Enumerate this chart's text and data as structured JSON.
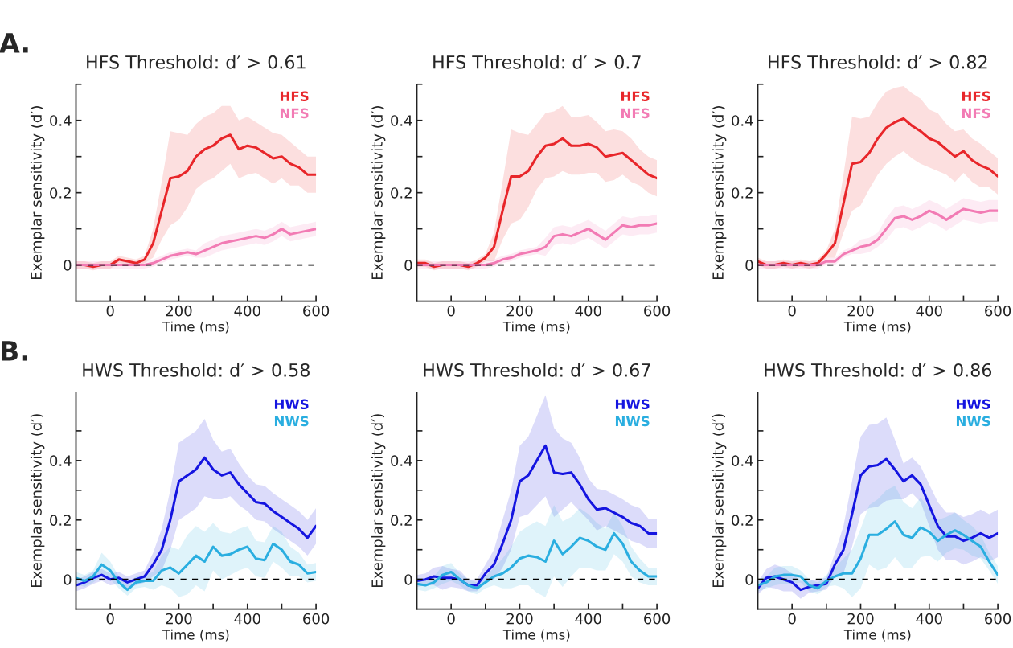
{
  "chart_data": [
    {
      "type": "line",
      "title": "HFS Threshold: d′ > 0.61",
      "xlabel": "Time (ms)",
      "ylabel": "Exemplar sensitivity (d′)",
      "annotations": [
        "A."
      ],
      "legend": "top right",
      "xlim": [
        -100,
        600
      ],
      "ylim": [
        -0.1,
        0.5
      ],
      "xticks": [
        0,
        {
          "value": 100,
          "label": null
        },
        200,
        {
          "value": 300,
          "label": null
        },
        400,
        {
          "value": 500,
          "label": null
        },
        600
      ],
      "yticks": [
        0,
        {
          "value": 0.1,
          "label": null
        },
        0.2,
        {
          "value": 0.3,
          "label": null
        },
        0.4,
        {
          "value": 0.5,
          "label": null
        }
      ],
      "ref_lines": [
        {
          "axis": "y",
          "value": 0,
          "color": "#000000",
          "line_style": "dashed"
        }
      ],
      "x": [
        -100,
        -75,
        -50,
        -25,
        0,
        25,
        50,
        75,
        100,
        125,
        150,
        175,
        200,
        225,
        250,
        275,
        300,
        325,
        350,
        375,
        400,
        425,
        450,
        475,
        500,
        525,
        550,
        575,
        600
      ],
      "series": [
        {
          "name": "HFS",
          "color": "#e8262a",
          "values": [
            0,
            0,
            -0.005,
            0,
            0,
            0.015,
            0.01,
            0.005,
            0.015,
            0.06,
            0.15,
            0.24,
            0.245,
            0.26,
            0.3,
            0.32,
            0.33,
            0.35,
            0.36,
            0.32,
            0.33,
            0.325,
            0.31,
            0.295,
            0.3,
            0.28,
            0.27,
            0.25,
            0.25
          ],
          "lower": [
            -0.01,
            -0.01,
            -0.015,
            -0.01,
            -0.01,
            0.005,
            0,
            -0.005,
            0.005,
            0.02,
            0.07,
            0.11,
            0.125,
            0.16,
            0.21,
            0.23,
            0.24,
            0.26,
            0.28,
            0.24,
            0.25,
            0.255,
            0.24,
            0.225,
            0.24,
            0.22,
            0.22,
            0.2,
            0.2
          ],
          "upper": [
            0.01,
            0.01,
            0.005,
            0.01,
            0.01,
            0.025,
            0.02,
            0.015,
            0.025,
            0.1,
            0.23,
            0.37,
            0.365,
            0.36,
            0.39,
            0.41,
            0.42,
            0.44,
            0.44,
            0.4,
            0.41,
            0.395,
            0.38,
            0.365,
            0.36,
            0.34,
            0.32,
            0.3,
            0.3
          ]
        },
        {
          "name": "NFS",
          "color": "#f27bb4",
          "values": [
            0,
            0,
            0,
            0,
            0,
            0,
            0,
            0,
            0,
            0.005,
            0.015,
            0.025,
            0.03,
            0.035,
            0.03,
            0.04,
            0.05,
            0.06,
            0.065,
            0.07,
            0.075,
            0.08,
            0.075,
            0.085,
            0.1,
            0.085,
            0.09,
            0.095,
            0.1
          ],
          "lower": [
            -0.01,
            -0.01,
            -0.01,
            -0.01,
            -0.01,
            -0.01,
            -0.01,
            -0.01,
            -0.01,
            -0.005,
            0.005,
            0.015,
            0.02,
            0.025,
            0.02,
            0.02,
            0.03,
            0.04,
            0.045,
            0.05,
            0.055,
            0.06,
            0.055,
            0.065,
            0.08,
            0.065,
            0.07,
            0.075,
            0.08
          ],
          "upper": [
            0.01,
            0.01,
            0.01,
            0.01,
            0.01,
            0.01,
            0.01,
            0.01,
            0.01,
            0.015,
            0.025,
            0.035,
            0.04,
            0.045,
            0.04,
            0.06,
            0.07,
            0.08,
            0.085,
            0.09,
            0.095,
            0.1,
            0.095,
            0.105,
            0.12,
            0.105,
            0.11,
            0.115,
            0.12
          ]
        }
      ]
    },
    {
      "type": "line",
      "title": "HFS Threshold: d′ > 0.7",
      "xlabel": "Time (ms)",
      "ylabel": "Exemplar sensitivity (d′)",
      "legend": "top right",
      "xlim": [
        -100,
        600
      ],
      "ylim": [
        -0.1,
        0.5
      ],
      "xticks": [
        0,
        {
          "value": 100,
          "label": null
        },
        200,
        {
          "value": 300,
          "label": null
        },
        400,
        {
          "value": 500,
          "label": null
        },
        600
      ],
      "yticks": [
        0,
        {
          "value": 0.1,
          "label": null
        },
        0.2,
        {
          "value": 0.3,
          "label": null
        },
        0.4,
        {
          "value": 0.5,
          "label": null
        }
      ],
      "ref_lines": [
        {
          "axis": "y",
          "value": 0,
          "color": "#000000",
          "line_style": "dashed"
        }
      ],
      "x": [
        -100,
        -75,
        -50,
        -25,
        0,
        25,
        50,
        75,
        100,
        125,
        150,
        175,
        200,
        225,
        250,
        275,
        300,
        325,
        350,
        375,
        400,
        425,
        450,
        475,
        500,
        525,
        550,
        575,
        600
      ],
      "series": [
        {
          "name": "HFS",
          "color": "#e8262a",
          "values": [
            0.005,
            0.005,
            -0.005,
            0,
            0,
            0,
            -0.005,
            0.005,
            0.02,
            0.05,
            0.15,
            0.245,
            0.245,
            0.26,
            0.3,
            0.33,
            0.335,
            0.35,
            0.33,
            0.33,
            0.335,
            0.325,
            0.3,
            0.305,
            0.31,
            0.29,
            0.27,
            0.25,
            0.24
          ],
          "lower": [
            -0.005,
            -0.005,
            -0.015,
            -0.01,
            -0.01,
            -0.01,
            -0.015,
            -0.005,
            0.01,
            0.01,
            0.07,
            0.115,
            0.125,
            0.16,
            0.21,
            0.24,
            0.245,
            0.26,
            0.25,
            0.25,
            0.255,
            0.255,
            0.23,
            0.235,
            0.25,
            0.23,
            0.22,
            0.2,
            0.19
          ],
          "upper": [
            0.015,
            0.015,
            0.005,
            0.01,
            0.01,
            0.01,
            0.005,
            0.015,
            0.03,
            0.09,
            0.23,
            0.375,
            0.365,
            0.36,
            0.39,
            0.42,
            0.425,
            0.44,
            0.41,
            0.41,
            0.415,
            0.395,
            0.37,
            0.375,
            0.37,
            0.35,
            0.32,
            0.3,
            0.29
          ]
        },
        {
          "name": "NFS",
          "color": "#f27bb4",
          "values": [
            0,
            0,
            0,
            0,
            0,
            0,
            0,
            0,
            0,
            0.005,
            0.015,
            0.02,
            0.03,
            0.035,
            0.04,
            0.05,
            0.08,
            0.085,
            0.08,
            0.09,
            0.1,
            0.085,
            0.07,
            0.09,
            0.11,
            0.105,
            0.11,
            0.11,
            0.115
          ],
          "lower": [
            -0.01,
            -0.01,
            -0.01,
            -0.01,
            -0.01,
            -0.01,
            -0.01,
            -0.01,
            -0.01,
            -0.005,
            0.005,
            0.01,
            0.02,
            0.025,
            0.03,
            0.025,
            0.055,
            0.06,
            0.055,
            0.065,
            0.075,
            0.06,
            0.045,
            0.065,
            0.085,
            0.08,
            0.085,
            0.085,
            0.09
          ],
          "upper": [
            0.01,
            0.01,
            0.01,
            0.01,
            0.01,
            0.01,
            0.01,
            0.01,
            0.01,
            0.015,
            0.025,
            0.03,
            0.04,
            0.045,
            0.05,
            0.075,
            0.105,
            0.11,
            0.105,
            0.115,
            0.125,
            0.11,
            0.095,
            0.115,
            0.135,
            0.13,
            0.135,
            0.135,
            0.14
          ]
        }
      ]
    },
    {
      "type": "line",
      "title": "HFS Threshold: d′ > 0.82",
      "xlabel": "Time (ms)",
      "ylabel": "Exemplar sensitivity (d′)",
      "legend": "top right",
      "xlim": [
        -100,
        600
      ],
      "ylim": [
        -0.1,
        0.5
      ],
      "xticks": [
        0,
        {
          "value": 100,
          "label": null
        },
        200,
        {
          "value": 300,
          "label": null
        },
        400,
        {
          "value": 500,
          "label": null
        },
        600
      ],
      "yticks": [
        0,
        {
          "value": 0.1,
          "label": null
        },
        0.2,
        {
          "value": 0.3,
          "label": null
        },
        0.4,
        {
          "value": 0.5,
          "label": null
        }
      ],
      "ref_lines": [
        {
          "axis": "y",
          "value": 0,
          "color": "#000000",
          "line_style": "dashed"
        }
      ],
      "x": [
        -100,
        -75,
        -50,
        -25,
        0,
        25,
        50,
        75,
        100,
        125,
        150,
        175,
        200,
        225,
        250,
        275,
        300,
        325,
        350,
        375,
        400,
        425,
        450,
        475,
        500,
        525,
        550,
        575,
        600
      ],
      "series": [
        {
          "name": "HFS",
          "color": "#e8262a",
          "values": [
            0.01,
            0,
            0,
            0.005,
            0,
            0.005,
            0,
            0.005,
            0.03,
            0.06,
            0.17,
            0.28,
            0.285,
            0.31,
            0.35,
            0.38,
            0.395,
            0.405,
            0.385,
            0.37,
            0.35,
            0.34,
            0.32,
            0.3,
            0.315,
            0.29,
            0.275,
            0.265,
            0.245
          ],
          "lower": [
            0,
            -0.01,
            -0.01,
            -0.005,
            -0.01,
            -0.005,
            -0.01,
            -0.005,
            0.02,
            0.02,
            0.09,
            0.15,
            0.165,
            0.21,
            0.25,
            0.28,
            0.3,
            0.315,
            0.295,
            0.28,
            0.27,
            0.26,
            0.25,
            0.23,
            0.255,
            0.23,
            0.215,
            0.215,
            0.195
          ],
          "upper": [
            0.02,
            0.01,
            0.01,
            0.015,
            0.01,
            0.015,
            0.01,
            0.015,
            0.04,
            0.1,
            0.25,
            0.41,
            0.405,
            0.41,
            0.45,
            0.48,
            0.49,
            0.495,
            0.475,
            0.46,
            0.43,
            0.42,
            0.39,
            0.37,
            0.375,
            0.35,
            0.335,
            0.315,
            0.295
          ]
        },
        {
          "name": "NFS",
          "color": "#f27bb4",
          "values": [
            0,
            0,
            0,
            0,
            0,
            0,
            0,
            0,
            0.01,
            0.01,
            0.03,
            0.04,
            0.05,
            0.055,
            0.07,
            0.1,
            0.13,
            0.135,
            0.125,
            0.135,
            0.15,
            0.14,
            0.125,
            0.14,
            0.155,
            0.15,
            0.145,
            0.15,
            0.15
          ],
          "lower": [
            -0.01,
            -0.01,
            -0.01,
            -0.01,
            -0.01,
            -0.01,
            -0.01,
            -0.01,
            0,
            0,
            0.02,
            0.03,
            0.03,
            0.035,
            0.05,
            0.07,
            0.1,
            0.105,
            0.095,
            0.105,
            0.12,
            0.11,
            0.095,
            0.11,
            0.125,
            0.12,
            0.115,
            0.12,
            0.12
          ],
          "upper": [
            0.01,
            0.01,
            0.01,
            0.01,
            0.01,
            0.01,
            0.01,
            0.01,
            0.02,
            0.02,
            0.04,
            0.05,
            0.07,
            0.075,
            0.09,
            0.13,
            0.16,
            0.165,
            0.155,
            0.165,
            0.18,
            0.17,
            0.155,
            0.17,
            0.185,
            0.18,
            0.175,
            0.18,
            0.18
          ]
        }
      ]
    },
    {
      "type": "line",
      "title": "HWS Threshold: d′ > 0.58",
      "xlabel": "Time (ms)",
      "ylabel": "Exemplar sensitivity (d′)",
      "annotations": [
        "B."
      ],
      "legend": "top right",
      "xlim": [
        -100,
        600
      ],
      "ylim": [
        -0.1,
        0.63
      ],
      "xticks": [
        0,
        {
          "value": 100,
          "label": null
        },
        200,
        {
          "value": 300,
          "label": null
        },
        400,
        {
          "value": 500,
          "label": null
        },
        600
      ],
      "yticks": [
        0,
        {
          "value": 0.1,
          "label": null
        },
        0.2,
        {
          "value": 0.3,
          "label": null
        },
        0.4,
        {
          "value": 0.5,
          "label": null
        }
      ],
      "ref_lines": [
        {
          "axis": "y",
          "value": 0,
          "color": "#000000",
          "line_style": "dashed"
        }
      ],
      "x": [
        -100,
        -75,
        -50,
        -25,
        0,
        25,
        50,
        75,
        100,
        125,
        150,
        175,
        200,
        225,
        250,
        275,
        300,
        325,
        350,
        375,
        400,
        425,
        450,
        475,
        500,
        525,
        550,
        575,
        600
      ],
      "series": [
        {
          "name": "HWS",
          "color": "#1515e0",
          "values": [
            -0.02,
            -0.01,
            0.005,
            0.015,
            0,
            0.005,
            -0.01,
            0,
            0.01,
            0.05,
            0.1,
            0.2,
            0.33,
            0.35,
            0.37,
            0.41,
            0.37,
            0.35,
            0.36,
            0.32,
            0.29,
            0.26,
            0.255,
            0.23,
            0.21,
            0.19,
            0.17,
            0.14,
            0.18
          ],
          "lower": [
            -0.04,
            -0.03,
            -0.015,
            -0.005,
            -0.02,
            -0.015,
            -0.03,
            -0.02,
            -0.01,
            0.01,
            0.03,
            0.1,
            0.2,
            0.22,
            0.24,
            0.28,
            0.27,
            0.27,
            0.28,
            0.25,
            0.23,
            0.2,
            0.195,
            0.17,
            0.15,
            0.13,
            0.11,
            0.08,
            0.12
          ],
          "upper": [
            0,
            0.01,
            0.025,
            0.035,
            0.02,
            0.025,
            0.01,
            0.02,
            0.03,
            0.09,
            0.17,
            0.3,
            0.46,
            0.48,
            0.5,
            0.54,
            0.47,
            0.43,
            0.44,
            0.39,
            0.35,
            0.32,
            0.315,
            0.29,
            0.27,
            0.25,
            0.23,
            0.2,
            0.24
          ]
        },
        {
          "name": "NWS",
          "color": "#2aaee0",
          "values": [
            0.005,
            -0.005,
            0.01,
            0.05,
            0.03,
            -0.01,
            -0.035,
            -0.01,
            -0.005,
            -0.005,
            0.03,
            0.04,
            0.02,
            0.05,
            0.08,
            0.06,
            0.11,
            0.08,
            0.085,
            0.1,
            0.11,
            0.07,
            0.065,
            0.12,
            0.1,
            0.06,
            0.05,
            0.02,
            0.025
          ],
          "lower": [
            -0.015,
            -0.025,
            -0.01,
            0.01,
            0,
            -0.03,
            -0.055,
            -0.03,
            -0.025,
            -0.035,
            -0.02,
            -0.03,
            -0.06,
            -0.05,
            -0.02,
            -0.04,
            0.03,
            0,
            0.015,
            0.03,
            0.04,
            0.01,
            0.005,
            0.06,
            0.04,
            0.01,
            0.01,
            -0.01,
            -0.005
          ],
          "upper": [
            0.025,
            0.015,
            0.03,
            0.09,
            0.06,
            0.01,
            -0.015,
            0.01,
            0.015,
            0.025,
            0.08,
            0.11,
            0.1,
            0.15,
            0.18,
            0.16,
            0.19,
            0.16,
            0.155,
            0.17,
            0.18,
            0.13,
            0.125,
            0.18,
            0.16,
            0.11,
            0.09,
            0.05,
            0.055
          ]
        }
      ]
    },
    {
      "type": "line",
      "title": "HWS Threshold: d′ > 0.67",
      "xlabel": "Time (ms)",
      "ylabel": "Exemplar sensitivity (d′)",
      "legend": "top right",
      "xlim": [
        -100,
        600
      ],
      "ylim": [
        -0.1,
        0.63
      ],
      "xticks": [
        0,
        {
          "value": 100,
          "label": null
        },
        200,
        {
          "value": 300,
          "label": null
        },
        400,
        {
          "value": 500,
          "label": null
        },
        600
      ],
      "yticks": [
        0,
        {
          "value": 0.1,
          "label": null
        },
        0.2,
        {
          "value": 0.3,
          "label": null
        },
        0.4,
        {
          "value": 0.5,
          "label": null
        }
      ],
      "ref_lines": [
        {
          "axis": "y",
          "value": 0,
          "color": "#000000",
          "line_style": "dashed"
        }
      ],
      "x": [
        -100,
        -75,
        -50,
        -25,
        0,
        25,
        50,
        75,
        100,
        125,
        150,
        175,
        200,
        225,
        250,
        275,
        300,
        325,
        350,
        375,
        400,
        425,
        450,
        475,
        500,
        525,
        550,
        575,
        600
      ],
      "series": [
        {
          "name": "HWS",
          "color": "#1515e0",
          "values": [
            -0.005,
            0,
            0.01,
            0.005,
            0.005,
            0,
            -0.02,
            -0.02,
            0.02,
            0.05,
            0.12,
            0.2,
            0.33,
            0.35,
            0.4,
            0.45,
            0.36,
            0.355,
            0.36,
            0.32,
            0.27,
            0.235,
            0.24,
            0.225,
            0.21,
            0.19,
            0.18,
            0.155,
            0.155
          ],
          "lower": [
            -0.025,
            -0.02,
            -0.02,
            -0.035,
            -0.025,
            -0.03,
            -0.04,
            -0.04,
            -0.01,
            0,
            0.04,
            0.1,
            0.21,
            0.22,
            0.25,
            0.28,
            0.21,
            0.235,
            0.26,
            0.23,
            0.2,
            0.165,
            0.18,
            0.165,
            0.15,
            0.13,
            0.12,
            0.105,
            0.105
          ],
          "upper": [
            0.015,
            0.02,
            0.04,
            0.045,
            0.035,
            0.03,
            0,
            0,
            0.05,
            0.1,
            0.2,
            0.3,
            0.45,
            0.48,
            0.55,
            0.62,
            0.51,
            0.475,
            0.46,
            0.41,
            0.34,
            0.305,
            0.3,
            0.285,
            0.27,
            0.25,
            0.24,
            0.205,
            0.205
          ]
        },
        {
          "name": "NWS",
          "color": "#2aaee0",
          "values": [
            -0.015,
            -0.02,
            -0.01,
            0.015,
            0.025,
            0,
            -0.02,
            -0.03,
            -0.01,
            0.01,
            0.02,
            0.04,
            0.07,
            0.08,
            0.075,
            0.06,
            0.13,
            0.085,
            0.11,
            0.14,
            0.13,
            0.11,
            0.1,
            0.155,
            0.12,
            0.06,
            0.03,
            0.01,
            0.01
          ],
          "lower": [
            -0.035,
            -0.04,
            -0.03,
            -0.015,
            -0.005,
            -0.02,
            -0.04,
            -0.05,
            -0.03,
            -0.02,
            -0.03,
            -0.03,
            -0.02,
            -0.02,
            -0.045,
            -0.06,
            0.01,
            -0.025,
            0.01,
            0.04,
            0.04,
            0.03,
            0.03,
            0.085,
            0.06,
            0.01,
            -0.01,
            -0.02,
            -0.02
          ],
          "upper": [
            0.005,
            0,
            0.01,
            0.045,
            0.055,
            0.02,
            0,
            -0.01,
            0.01,
            0.04,
            0.07,
            0.11,
            0.16,
            0.18,
            0.195,
            0.18,
            0.25,
            0.195,
            0.21,
            0.24,
            0.22,
            0.19,
            0.17,
            0.225,
            0.18,
            0.11,
            0.07,
            0.04,
            0.04
          ]
        }
      ]
    },
    {
      "type": "line",
      "title": "HWS Threshold: d′ > 0.86",
      "xlabel": "Time (ms)",
      "ylabel": "Exemplar sensitivity (d′)",
      "legend": "top right",
      "xlim": [
        -100,
        600
      ],
      "ylim": [
        -0.1,
        0.63
      ],
      "xticks": [
        0,
        {
          "value": 100,
          "label": null
        },
        200,
        {
          "value": 300,
          "label": null
        },
        400,
        {
          "value": 500,
          "label": null
        },
        600
      ],
      "yticks": [
        0,
        {
          "value": 0.1,
          "label": null
        },
        0.2,
        {
          "value": 0.3,
          "label": null
        },
        0.4,
        {
          "value": 0.5,
          "label": null
        }
      ],
      "ref_lines": [
        {
          "axis": "y",
          "value": 0,
          "color": "#000000",
          "line_style": "dashed"
        }
      ],
      "x": [
        -100,
        -75,
        -50,
        -25,
        0,
        25,
        50,
        75,
        100,
        125,
        150,
        175,
        200,
        225,
        250,
        275,
        300,
        325,
        350,
        375,
        400,
        425,
        450,
        475,
        500,
        525,
        550,
        575,
        600
      ],
      "series": [
        {
          "name": "HWS",
          "color": "#1515e0",
          "values": [
            -0.03,
            0.005,
            0.01,
            0,
            -0.01,
            -0.035,
            -0.025,
            -0.02,
            -0.015,
            0.05,
            0.1,
            0.22,
            0.35,
            0.38,
            0.385,
            0.405,
            0.37,
            0.33,
            0.35,
            0.32,
            0.25,
            0.18,
            0.145,
            0.145,
            0.13,
            0.14,
            0.155,
            0.14,
            0.155
          ],
          "lower": [
            -0.05,
            -0.025,
            -0.03,
            -0.04,
            -0.04,
            -0.065,
            -0.045,
            -0.04,
            -0.035,
            0.01,
            0.02,
            0.11,
            0.22,
            0.24,
            0.245,
            0.265,
            0.27,
            0.27,
            0.29,
            0.26,
            0.18,
            0.1,
            0.065,
            0.065,
            0.05,
            0.06,
            0.075,
            0.06,
            0.075
          ],
          "upper": [
            -0.01,
            0.035,
            0.05,
            0.04,
            0.02,
            -0.005,
            -0.005,
            0,
            0.005,
            0.09,
            0.18,
            0.33,
            0.48,
            0.52,
            0.525,
            0.545,
            0.47,
            0.39,
            0.41,
            0.38,
            0.32,
            0.26,
            0.225,
            0.225,
            0.21,
            0.22,
            0.235,
            0.22,
            0.235
          ]
        },
        {
          "name": "NWS",
          "color": "#2aaee0",
          "values": [
            -0.02,
            -0.01,
            0.01,
            0.015,
            0.015,
            0.01,
            -0.02,
            -0.03,
            -0.005,
            0.01,
            0.02,
            0.02,
            0.07,
            0.15,
            0.15,
            0.17,
            0.195,
            0.15,
            0.14,
            0.175,
            0.16,
            0.13,
            0.15,
            0.165,
            0.15,
            0.13,
            0.11,
            0.06,
            0.015
          ],
          "lower": [
            -0.04,
            -0.03,
            -0.02,
            -0.015,
            -0.015,
            -0.01,
            -0.04,
            -0.05,
            -0.025,
            -0.02,
            -0.03,
            -0.06,
            -0.03,
            0.05,
            0.03,
            0.04,
            0.075,
            0.04,
            0.04,
            0.075,
            0.08,
            0.06,
            0.09,
            0.105,
            0.1,
            0.08,
            0.07,
            0.03,
            -0.015
          ],
          "upper": [
            0,
            0.01,
            0.04,
            0.045,
            0.045,
            0.03,
            0,
            -0.01,
            0.015,
            0.04,
            0.07,
            0.1,
            0.17,
            0.25,
            0.27,
            0.3,
            0.315,
            0.26,
            0.24,
            0.275,
            0.24,
            0.2,
            0.21,
            0.225,
            0.2,
            0.18,
            0.15,
            0.09,
            0.045
          ]
        }
      ]
    }
  ]
}
